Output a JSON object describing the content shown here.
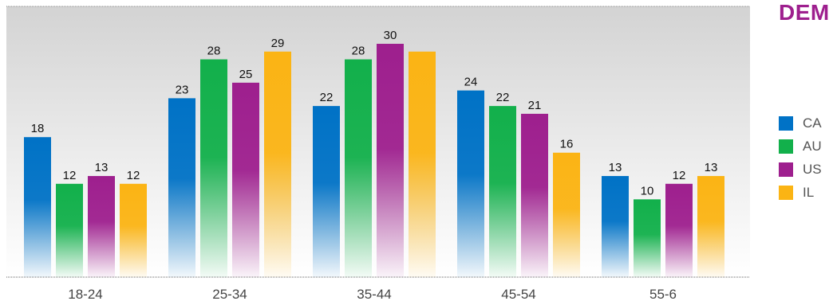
{
  "chart_data": {
    "type": "bar",
    "title": "DEM",
    "categories": [
      "18-24",
      "25-34",
      "35-44",
      "45-54",
      "55-6"
    ],
    "series": [
      {
        "name": "CA",
        "color": "#0072c6",
        "values": [
          18,
          23,
          22,
          24,
          13
        ]
      },
      {
        "name": "AU",
        "color": "#12b04b",
        "values": [
          12,
          28,
          28,
          22,
          10
        ]
      },
      {
        "name": "US",
        "color": "#9e1f8e",
        "values": [
          13,
          25,
          30,
          21,
          12
        ]
      },
      {
        "name": "IL",
        "color": "#fbb414",
        "values": [
          12,
          29,
          null,
          16,
          13
        ]
      }
    ],
    "ylim": [
      0,
      30
    ],
    "grid": false,
    "legend_position": "right",
    "title_color": "#9e1f8e"
  }
}
